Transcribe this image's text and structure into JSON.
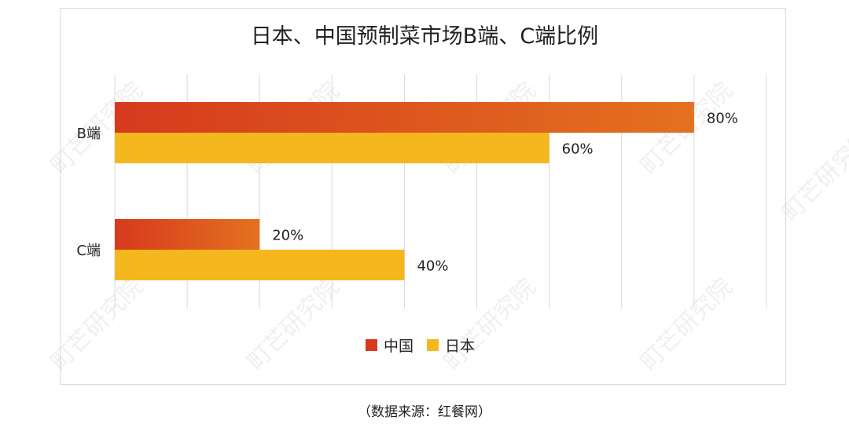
{
  "chart_data": {
    "type": "bar",
    "orientation": "horizontal",
    "title": "日本、中国预制菜市场B端、C端比例",
    "categories": [
      "B端",
      "C端"
    ],
    "series": [
      {
        "name": "中国",
        "values": [
          80,
          20
        ],
        "color_start": "#d63a1e",
        "color_end": "#e4711f"
      },
      {
        "name": "日本",
        "values": [
          60,
          40
        ],
        "color": "#f4b81e"
      }
    ],
    "value_unit": "%",
    "xlim": [
      0,
      90
    ],
    "grid": true,
    "legend_position": "bottom"
  },
  "source_note": "（数据来源：红餐网）",
  "watermark": "町芒研究院"
}
